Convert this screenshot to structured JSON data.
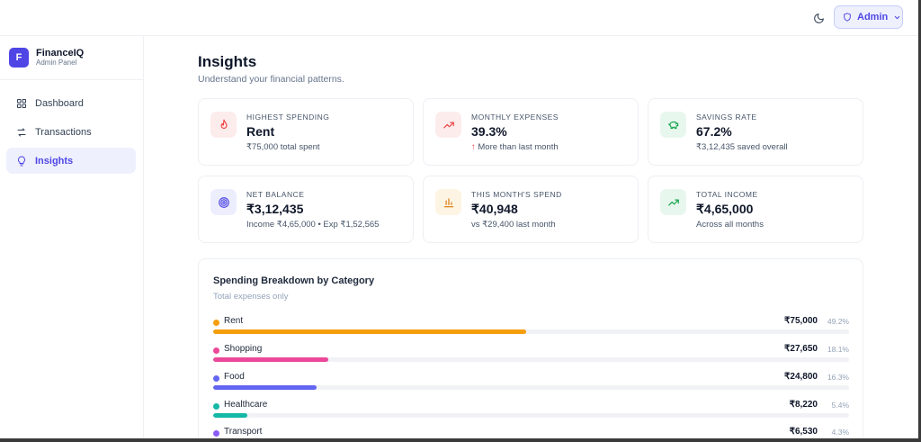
{
  "header": {
    "theme_icon": "moon-icon",
    "admin_label": "Admin"
  },
  "sidebar": {
    "brand": {
      "logo": "F",
      "name": "FinanceIQ",
      "subtitle": "Admin Panel"
    },
    "items": [
      {
        "label": "Dashboard",
        "icon": "grid-icon",
        "active": false
      },
      {
        "label": "Transactions",
        "icon": "arrows-swap-icon",
        "active": false
      },
      {
        "label": "Insights",
        "icon": "lightbulb-icon",
        "active": true
      }
    ]
  },
  "main": {
    "title": "Insights",
    "subtitle": "Understand your financial patterns.",
    "cards": [
      {
        "label": "HIGHEST SPENDING",
        "value": "Rent",
        "sub": "₹75,000 total spent",
        "icon": "flame-icon",
        "color": "#ef4444",
        "bg": "#fdecec"
      },
      {
        "label": "MONTHLY EXPENSES",
        "value": "39.3%",
        "sub": "More than last month",
        "sub_prefix": "↑",
        "icon": "trending-up-icon",
        "color": "#ef4444",
        "bg": "#fdecec"
      },
      {
        "label": "SAVINGS RATE",
        "value": "67.2%",
        "sub": "₹3,12,435 saved overall",
        "icon": "piggy-bank-icon",
        "color": "#16a34a",
        "bg": "#e8f7ee"
      },
      {
        "label": "NET BALANCE",
        "value": "₹3,12,435",
        "sub": "Income ₹4,65,000 • Exp ₹1,52,565",
        "icon": "target-icon",
        "color": "#4f46e5",
        "bg": "#eceefe"
      },
      {
        "label": "THIS MONTH'S SPEND",
        "value": "₹40,948",
        "sub": "vs ₹29,400 last month",
        "icon": "bar-chart-icon",
        "color": "#d97706",
        "bg": "#fdf4e3"
      },
      {
        "label": "TOTAL INCOME",
        "value": "₹4,65,000",
        "sub": "Across all months",
        "icon": "trending-up-icon",
        "color": "#16a34a",
        "bg": "#e8f7ee"
      }
    ],
    "breakdown": {
      "title": "Spending Breakdown by Category",
      "subtitle": "Total expenses only",
      "rows": [
        {
          "name": "Rent",
          "amount": "₹75,000",
          "percent": "49.2%",
          "share": 0.492,
          "color": "#f59e0b"
        },
        {
          "name": "Shopping",
          "amount": "₹27,650",
          "percent": "18.1%",
          "share": 0.181,
          "color": "#ec4899"
        },
        {
          "name": "Food",
          "amount": "₹24,800",
          "percent": "16.3%",
          "share": 0.163,
          "color": "#6366f1"
        },
        {
          "name": "Healthcare",
          "amount": "₹8,220",
          "percent": "5.4%",
          "share": 0.054,
          "color": "#14b8a6"
        },
        {
          "name": "Transport",
          "amount": "₹6,530",
          "percent": "4.3%",
          "share": 0.043,
          "color": "#8b5cf6"
        }
      ]
    }
  }
}
